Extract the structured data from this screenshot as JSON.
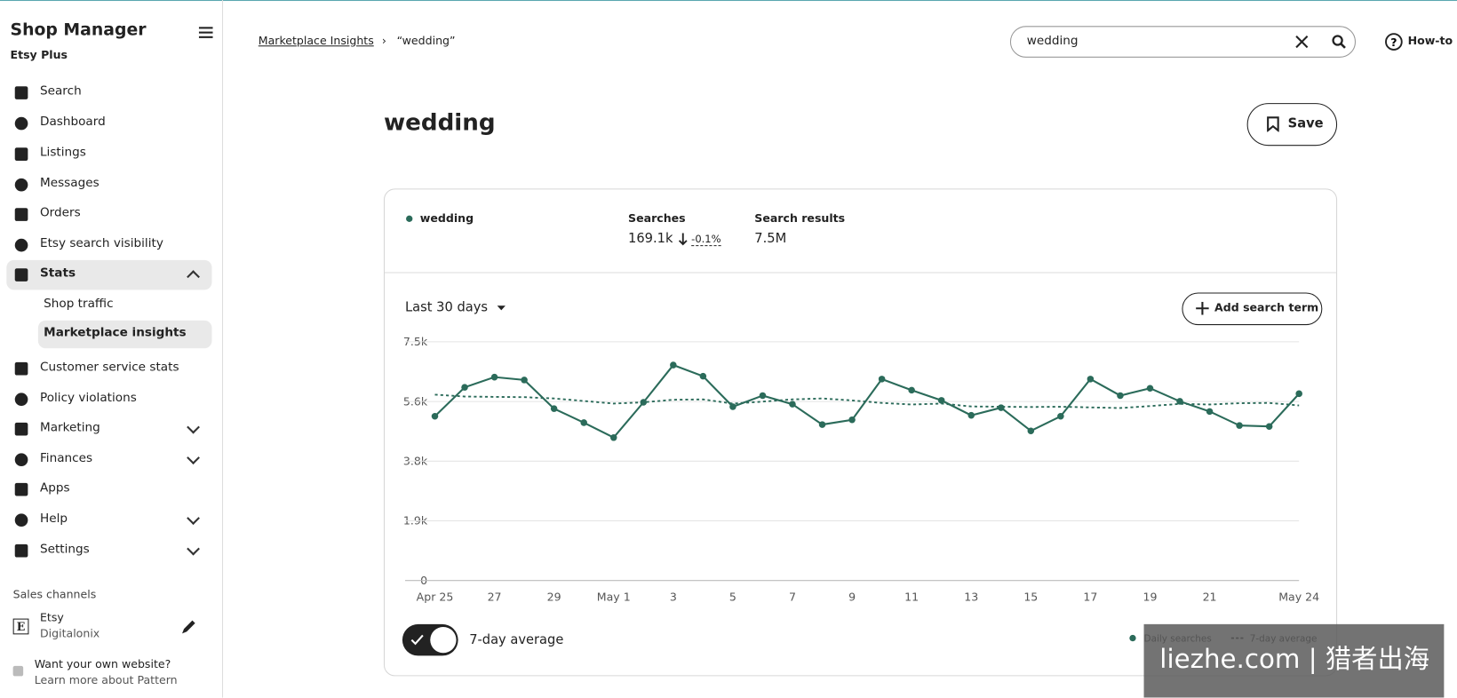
{
  "sidebar": {
    "title": "Shop Manager",
    "subtitle": "Etsy Plus",
    "nav": [
      "Search",
      "Dashboard",
      "Listings",
      "Messages",
      "Orders",
      "Etsy search visibility",
      "Stats"
    ],
    "stats_sub": [
      "Shop traffic",
      "Marketplace insights"
    ],
    "nav2": [
      "Customer service stats",
      "Policy violations",
      "Marketing",
      "Finances",
      "Apps",
      "Help",
      "Settings"
    ],
    "sales_channels": "Sales channels",
    "channel_name": "Etsy",
    "channel_shop": "Digitalonix",
    "promo_title": "Want your own website?",
    "promo_link": "Learn more about Pattern"
  },
  "header": {
    "breadcrumb": "Marketplace Insights",
    "current": "“wedding”",
    "search_value": "wedding",
    "howto": "How-to"
  },
  "page_title": "wedding",
  "save": "Save",
  "summary": {
    "term": "wedding",
    "searches_label": "Searches",
    "searches": "169.1k",
    "change": "-0.1%",
    "results_label": "Search results",
    "results": "7.5M"
  },
  "range": "Last 30 days",
  "add_term": "Add search term",
  "toggle_label": "7-day average",
  "watermark": "liezhe.com | 猎者出海",
  "chart_data": {
    "type": "line",
    "categories": [
      "Apr 25",
      null,
      "27",
      null,
      "29",
      null,
      "May 1",
      null,
      "3",
      null,
      "5",
      null,
      "7",
      null,
      "9",
      null,
      "11",
      null,
      "13",
      null,
      "15",
      null,
      "17",
      null,
      "19",
      null,
      "21",
      null,
      null,
      "May 24"
    ],
    "series": [
      {
        "name": "Daily searches",
        "color": "#2b6b5a",
        "dashed": false,
        "markers": true,
        "values": [
          5160,
          6070,
          6390,
          6300,
          5400,
          4960,
          4490,
          5600,
          6770,
          6420,
          5460,
          5810,
          5540,
          4900,
          5050,
          6330,
          5980,
          5660,
          5190,
          5430,
          4700,
          5160,
          6330,
          5810,
          6040,
          5630,
          5310,
          4870,
          4840,
          5870
        ]
      },
      {
        "name": "7-day average",
        "color": "#2b6b5a",
        "dashed": true,
        "markers": false,
        "values": [
          5840,
          5780,
          5770,
          5760,
          5720,
          5640,
          5560,
          5600,
          5680,
          5690,
          5560,
          5620,
          5690,
          5720,
          5660,
          5580,
          5530,
          5560,
          5470,
          5460,
          5450,
          5460,
          5440,
          5420,
          5480,
          5550,
          5530,
          5570,
          5580,
          5500
        ]
      }
    ],
    "ylim": [
      0,
      7500
    ],
    "yticks": [
      0,
      {
        "value": 1875,
        "label": "1.9k"
      },
      {
        "value": 3750,
        "label": "3.8k"
      },
      {
        "value": 5625,
        "label": "5.6k"
      },
      {
        "value": 7500,
        "label": "7.5k"
      }
    ],
    "grid": true,
    "legend": "lower right"
  }
}
